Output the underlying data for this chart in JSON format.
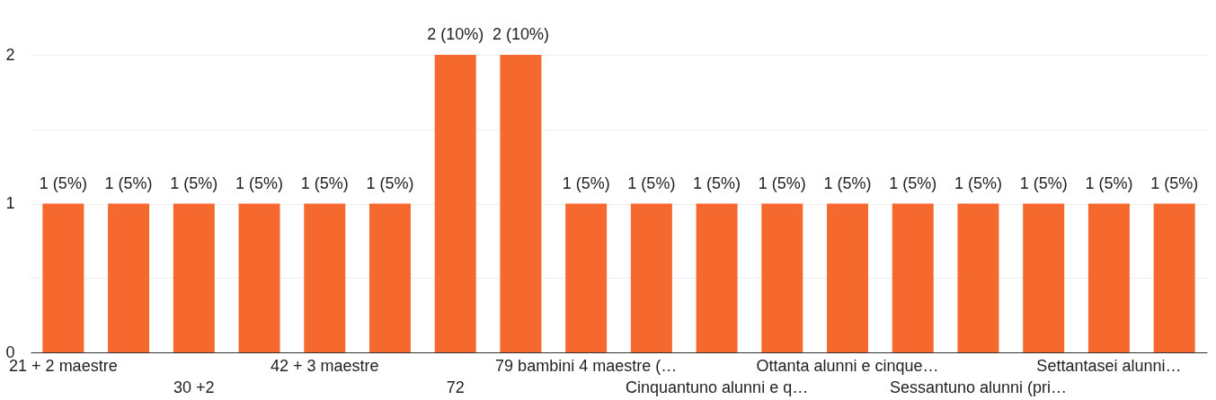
{
  "chart_data": {
    "type": "bar",
    "categories": [
      "21 + 2 maestre",
      null,
      "30 +2",
      null,
      "42 + 3 maestre",
      null,
      "72",
      null,
      "79 bambini 4 maestre (…",
      null,
      "Cinquantuno alunni e q…",
      null,
      "Ottanta alunni e cinque…",
      null,
      "Sessantuno alunni (pri…",
      null,
      "Settantasei alunni…",
      null
    ],
    "values": [
      1,
      1,
      1,
      1,
      1,
      1,
      2,
      2,
      1,
      1,
      1,
      1,
      1,
      1,
      1,
      1,
      1,
      1
    ],
    "value_labels": [
      "1 (5%)",
      "1 (5%)",
      "1 (5%)",
      "1 (5%)",
      "1 (5%)",
      "1 (5%)",
      "2 (10%)",
      "2 (10%)",
      "1 (5%)",
      "1 (5%)",
      "1 (5%)",
      "1 (5%)",
      "1 (5%)",
      "1 (5%)",
      "1 (5%)",
      "1 (5%)",
      "1 (5%)",
      "1 (5%)"
    ],
    "color": "#f6692e",
    "ylim": [
      0,
      2
    ],
    "yticks": [
      0,
      {
        "value": 0.5,
        "label": null
      },
      1,
      {
        "value": 1.5,
        "label": null
      },
      2
    ],
    "grid": "y"
  }
}
